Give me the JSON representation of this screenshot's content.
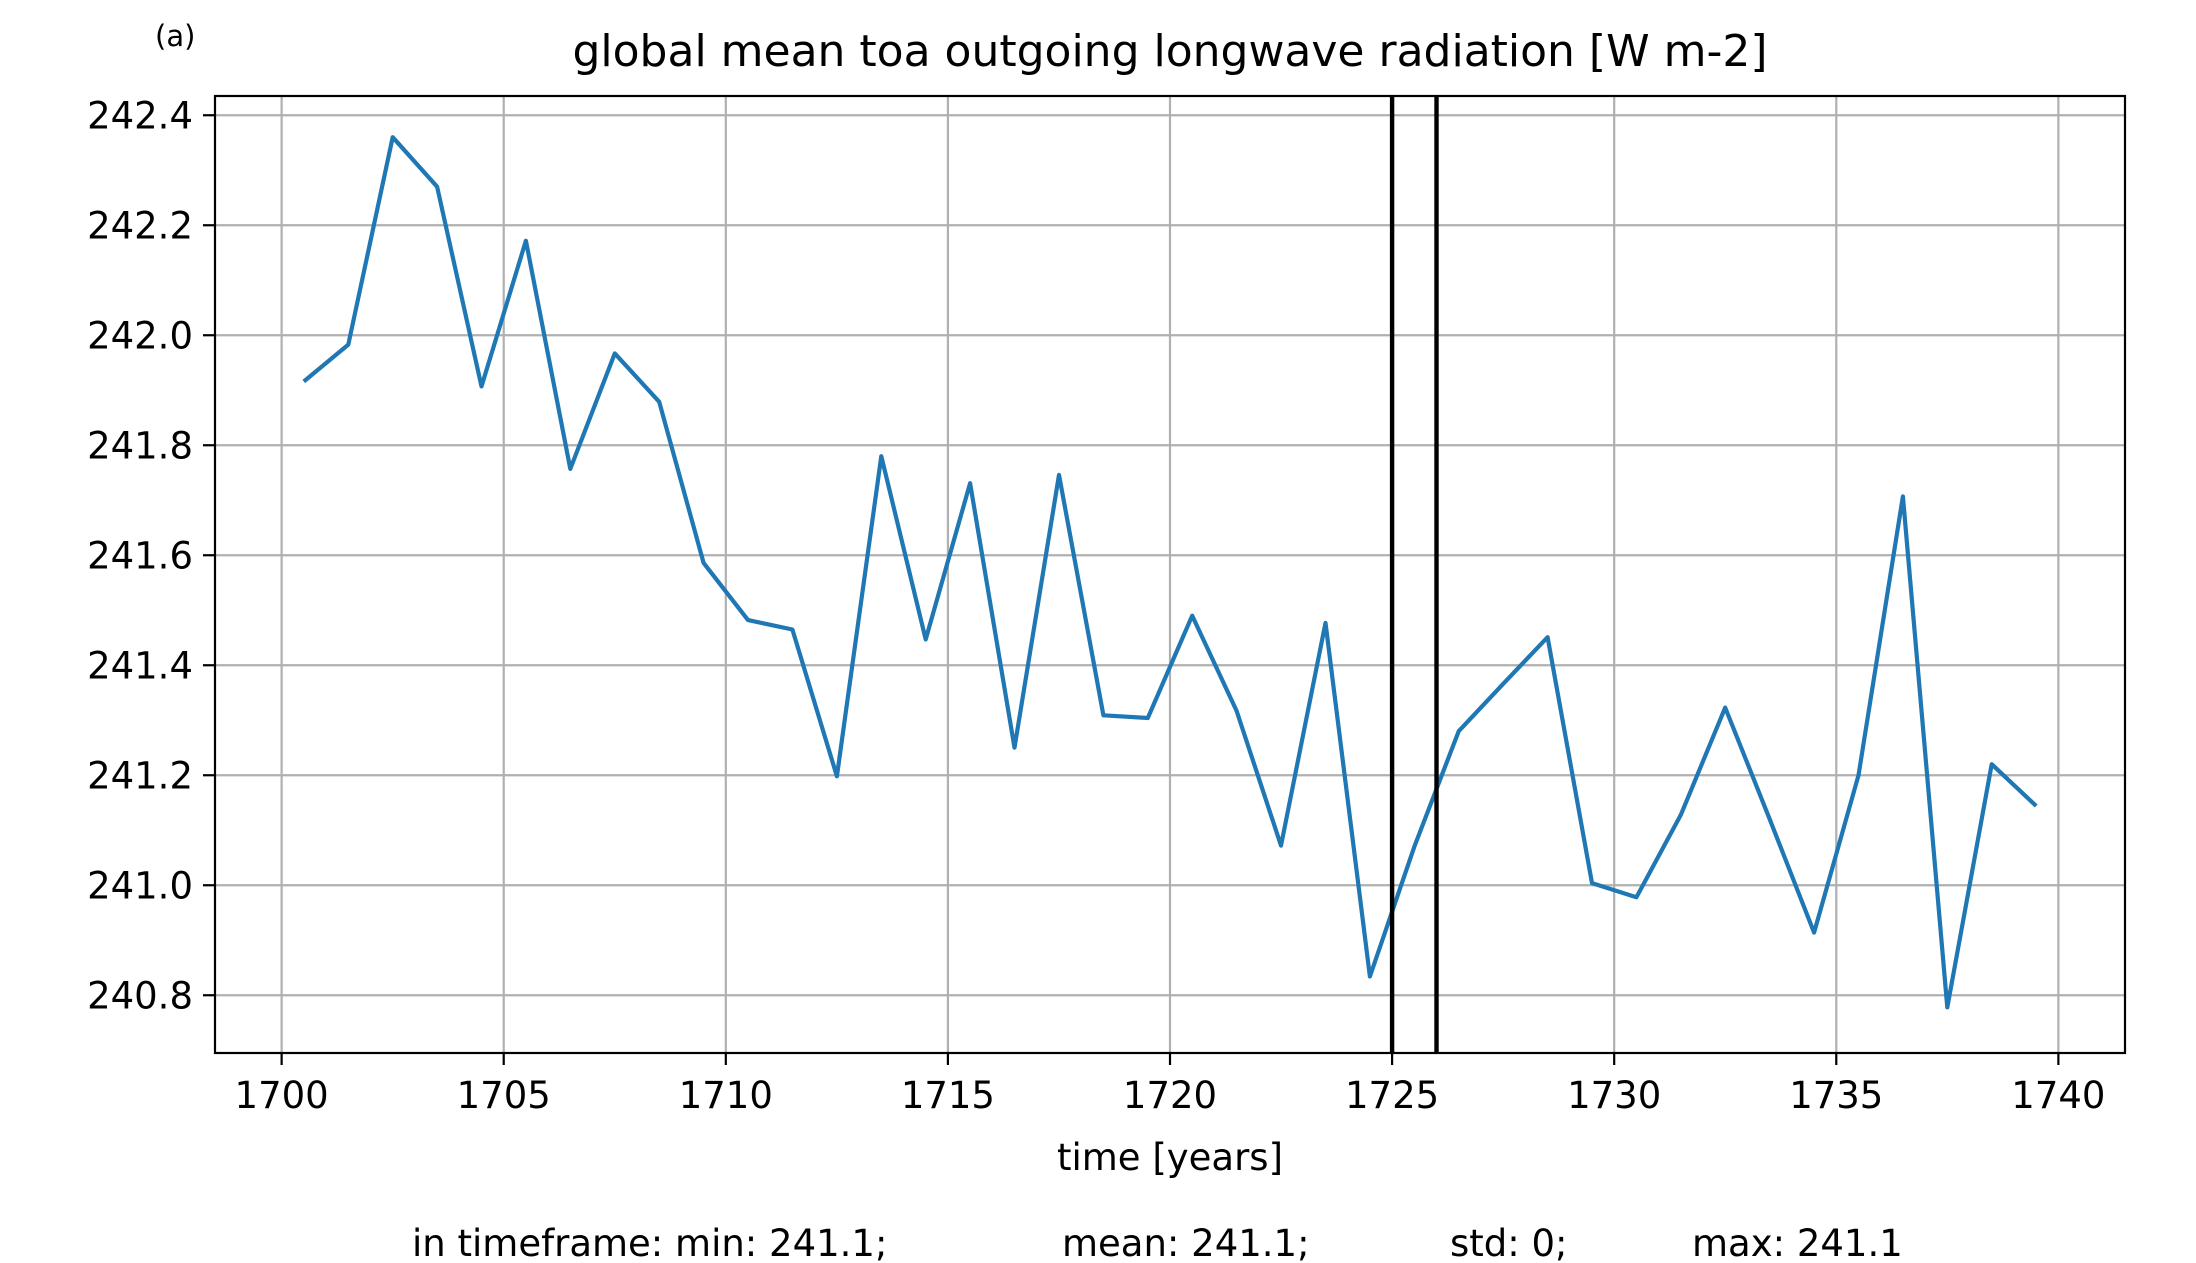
{
  "panel_label": "(a)",
  "footer": {
    "min": "in timeframe: min: 241.1;",
    "mean": "mean: 241.1;",
    "std": "std: 0;",
    "max": "max: 241.1"
  },
  "chart_data": {
    "type": "line",
    "title": "global mean toa outgoing longwave radiation [W m-2]",
    "xlabel": "time [years]",
    "ylabel": "",
    "xlim": [
      1698.5,
      1741.5
    ],
    "ylim": [
      240.695,
      242.435
    ],
    "xticks": [
      1700,
      1705,
      1710,
      1715,
      1720,
      1725,
      1730,
      1735,
      1740
    ],
    "yticks": [
      240.8,
      241.0,
      241.2,
      241.4,
      241.6,
      241.8,
      242.0,
      242.2,
      242.4
    ],
    "grid": true,
    "series": [
      {
        "color": "#1f77b4",
        "x": [
          1700.5,
          1701.5,
          1702.5,
          1703.5,
          1704.5,
          1705.5,
          1706.5,
          1707.5,
          1708.5,
          1709.5,
          1710.5,
          1711.5,
          1712.5,
          1713.5,
          1714.5,
          1715.5,
          1716.5,
          1717.5,
          1718.5,
          1719.5,
          1720.5,
          1721.5,
          1722.5,
          1723.5,
          1724.5,
          1725.5,
          1726.5,
          1727.5,
          1728.5,
          1729.5,
          1730.5,
          1731.5,
          1732.5,
          1733.5,
          1734.5,
          1735.5,
          1736.5,
          1737.5,
          1738.5,
          1739.5
        ],
        "y": [
          241.916,
          241.983,
          242.36,
          242.27,
          241.907,
          242.172,
          241.757,
          241.967,
          241.879,
          241.586,
          241.482,
          241.465,
          241.198,
          241.78,
          241.447,
          241.731,
          241.25,
          241.746,
          241.309,
          241.304,
          241.49,
          241.317,
          241.072,
          241.477,
          240.834,
          241.07,
          241.28,
          241.366,
          241.451,
          241.004,
          240.978,
          241.128,
          241.323,
          241.12,
          240.914,
          241.2,
          241.707,
          240.778,
          241.22,
          241.144
        ]
      }
    ],
    "vlines": [
      1725.0,
      1726.0
    ]
  }
}
